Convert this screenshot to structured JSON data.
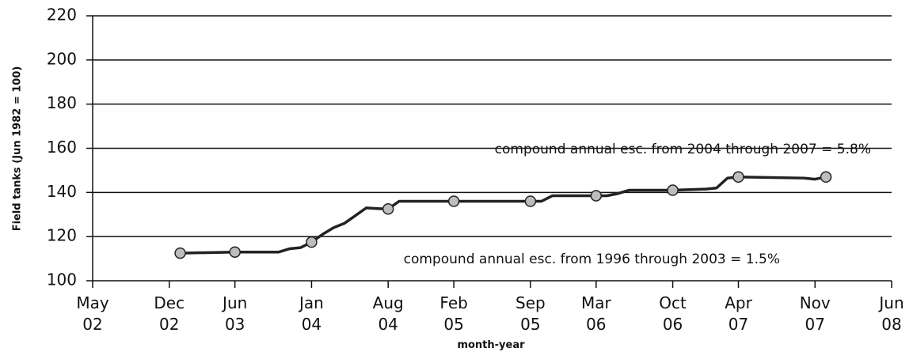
{
  "chart_data": {
    "type": "line",
    "ylabel": "Field tanks (Jun 1982 = 100)",
    "xlabel": "month-year",
    "annotations": [
      "compound annual esc. from 2004 through 2007 = 5.8%",
      "compound annual esc. from 1996 through 2003 = 1.5%"
    ],
    "xlim": [
      "2002-05",
      "2008-06"
    ],
    "xticks": [
      {
        "value": "2002-05",
        "label": "May 02"
      },
      {
        "value": "2002-12",
        "label": "Dec 02"
      },
      {
        "value": "2003-06",
        "label": "Jun 03"
      },
      {
        "value": "2004-01",
        "label": "Jan 04"
      },
      {
        "value": "2004-08",
        "label": "Aug 04"
      },
      {
        "value": "2005-02",
        "label": "Feb 05"
      },
      {
        "value": "2005-09",
        "label": "Sep 05"
      },
      {
        "value": "2006-03",
        "label": "Mar 06"
      },
      {
        "value": "2006-10",
        "label": "Oct 06"
      },
      {
        "value": "2007-04",
        "label": "Apr 07"
      },
      {
        "value": "2007-11",
        "label": "Nov 07"
      },
      {
        "value": "2008-06",
        "label": "Jun 08"
      }
    ],
    "ylim": [
      100,
      220
    ],
    "yticks": [
      100,
      120,
      140,
      160,
      180,
      200,
      220
    ],
    "grid": true,
    "series": [
      {
        "color": "#222222",
        "markers": false,
        "x": [
          "2003-01",
          "2003-06",
          "2003-10",
          "2003-11",
          "2003-12",
          "2004-01",
          "2004-02",
          "2004-03",
          "2004-04",
          "2004-05",
          "2004-06",
          "2004-07",
          "2004-08",
          "2004-09",
          "2005-09",
          "2005-10",
          "2005-11",
          "2006-03",
          "2006-04",
          "2006-05",
          "2006-06",
          "2006-10",
          "2007-01",
          "2007-02",
          "2007-03",
          "2007-04",
          "2007-10",
          "2007-11",
          "2007-12"
        ],
        "values": [
          112.5,
          113,
          113,
          114.5,
          115,
          117.5,
          121,
          124,
          126,
          129.5,
          133,
          132.7,
          132.5,
          136,
          136,
          136,
          138.5,
          138.5,
          138.5,
          139.5,
          141,
          141,
          141.5,
          142,
          146.5,
          147,
          146.5,
          146,
          147
        ]
      },
      {
        "color": "#bdbdbd",
        "markers": true,
        "x": [
          "2003-01",
          "2003-06",
          "2004-01",
          "2004-08",
          "2005-02",
          "2005-09",
          "2006-03",
          "2006-10",
          "2007-04",
          "2007-12"
        ],
        "values": [
          112.5,
          113,
          117.5,
          132.5,
          136,
          136,
          138.5,
          141,
          147,
          147
        ]
      }
    ]
  }
}
